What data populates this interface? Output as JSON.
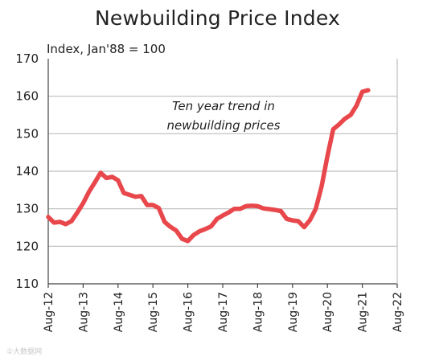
{
  "chart_data": {
    "type": "line",
    "title": "Newbuilding Price Index",
    "subtitle": "Index, Jan'88 = 100",
    "annotation": [
      "Ten year trend in",
      "newbuilding prices"
    ],
    "xlabel": "",
    "ylabel": "",
    "ylim": [
      110,
      170
    ],
    "yticks": [
      "110",
      "120",
      "130",
      "140",
      "150",
      "160",
      "170"
    ],
    "xticks": [
      "Aug-12",
      "Aug-13",
      "Aug-14",
      "Aug-15",
      "Aug-16",
      "Aug-17",
      "Aug-18",
      "Aug-19",
      "Aug-20",
      "Aug-21",
      "Aug-22"
    ],
    "grid": "horizontal",
    "line_color": "#e8474b",
    "series": [
      {
        "values": [
          {
            "x": "Aug-12",
            "y": 127.8
          },
          {
            "x": "Oct-12",
            "y": 126.3
          },
          {
            "x": "Dec-12",
            "y": 126.5
          },
          {
            "x": "Feb-13",
            "y": 125.9
          },
          {
            "x": "Apr-13",
            "y": 126.7
          },
          {
            "x": "Jun-13",
            "y": 129.0
          },
          {
            "x": "Aug-13",
            "y": 131.5
          },
          {
            "x": "Oct-13",
            "y": 134.5
          },
          {
            "x": "Dec-13",
            "y": 137.0
          },
          {
            "x": "Feb-14",
            "y": 139.6
          },
          {
            "x": "Apr-14",
            "y": 138.2
          },
          {
            "x": "Jun-14",
            "y": 138.5
          },
          {
            "x": "Aug-14",
            "y": 137.6
          },
          {
            "x": "Oct-14",
            "y": 134.2
          },
          {
            "x": "Dec-14",
            "y": 133.7
          },
          {
            "x": "Feb-15",
            "y": 133.2
          },
          {
            "x": "Apr-15",
            "y": 133.4
          },
          {
            "x": "Jun-15",
            "y": 131.0
          },
          {
            "x": "Aug-15",
            "y": 131.0
          },
          {
            "x": "Oct-15",
            "y": 130.2
          },
          {
            "x": "Dec-15",
            "y": 126.5
          },
          {
            "x": "Feb-16",
            "y": 125.2
          },
          {
            "x": "Apr-16",
            "y": 124.2
          },
          {
            "x": "Jun-16",
            "y": 122.0
          },
          {
            "x": "Aug-16",
            "y": 121.4
          },
          {
            "x": "Oct-16",
            "y": 123.0
          },
          {
            "x": "Dec-16",
            "y": 124.0
          },
          {
            "x": "Feb-17",
            "y": 124.6
          },
          {
            "x": "Apr-17",
            "y": 125.3
          },
          {
            "x": "Jun-17",
            "y": 127.3
          },
          {
            "x": "Aug-17",
            "y": 128.2
          },
          {
            "x": "Oct-17",
            "y": 129.0
          },
          {
            "x": "Dec-17",
            "y": 130.0
          },
          {
            "x": "Feb-18",
            "y": 130.0
          },
          {
            "x": "Apr-18",
            "y": 130.7
          },
          {
            "x": "Jun-18",
            "y": 130.8
          },
          {
            "x": "Aug-18",
            "y": 130.7
          },
          {
            "x": "Oct-18",
            "y": 130.1
          },
          {
            "x": "Dec-18",
            "y": 129.9
          },
          {
            "x": "Feb-19",
            "y": 129.7
          },
          {
            "x": "Apr-19",
            "y": 129.4
          },
          {
            "x": "Jun-19",
            "y": 127.3
          },
          {
            "x": "Aug-19",
            "y": 126.9
          },
          {
            "x": "Oct-19",
            "y": 126.7
          },
          {
            "x": "Dec-19",
            "y": 125.1
          },
          {
            "x": "Feb-20",
            "y": 127.0
          },
          {
            "x": "Apr-20",
            "y": 130.0
          },
          {
            "x": "Jun-20",
            "y": 136.0
          },
          {
            "x": "Aug-20",
            "y": 144.0
          },
          {
            "x": "Oct-20",
            "y": 151.2
          },
          {
            "x": "Dec-20",
            "y": 152.5
          },
          {
            "x": "Feb-21",
            "y": 154.0
          },
          {
            "x": "Apr-21",
            "y": 155.0
          },
          {
            "x": "Jun-21",
            "y": 157.5
          },
          {
            "x": "Aug-21",
            "y": 161.2
          },
          {
            "x": "Oct-21",
            "y": 161.6
          }
        ]
      }
    ]
  },
  "watermark": "①大数据网"
}
